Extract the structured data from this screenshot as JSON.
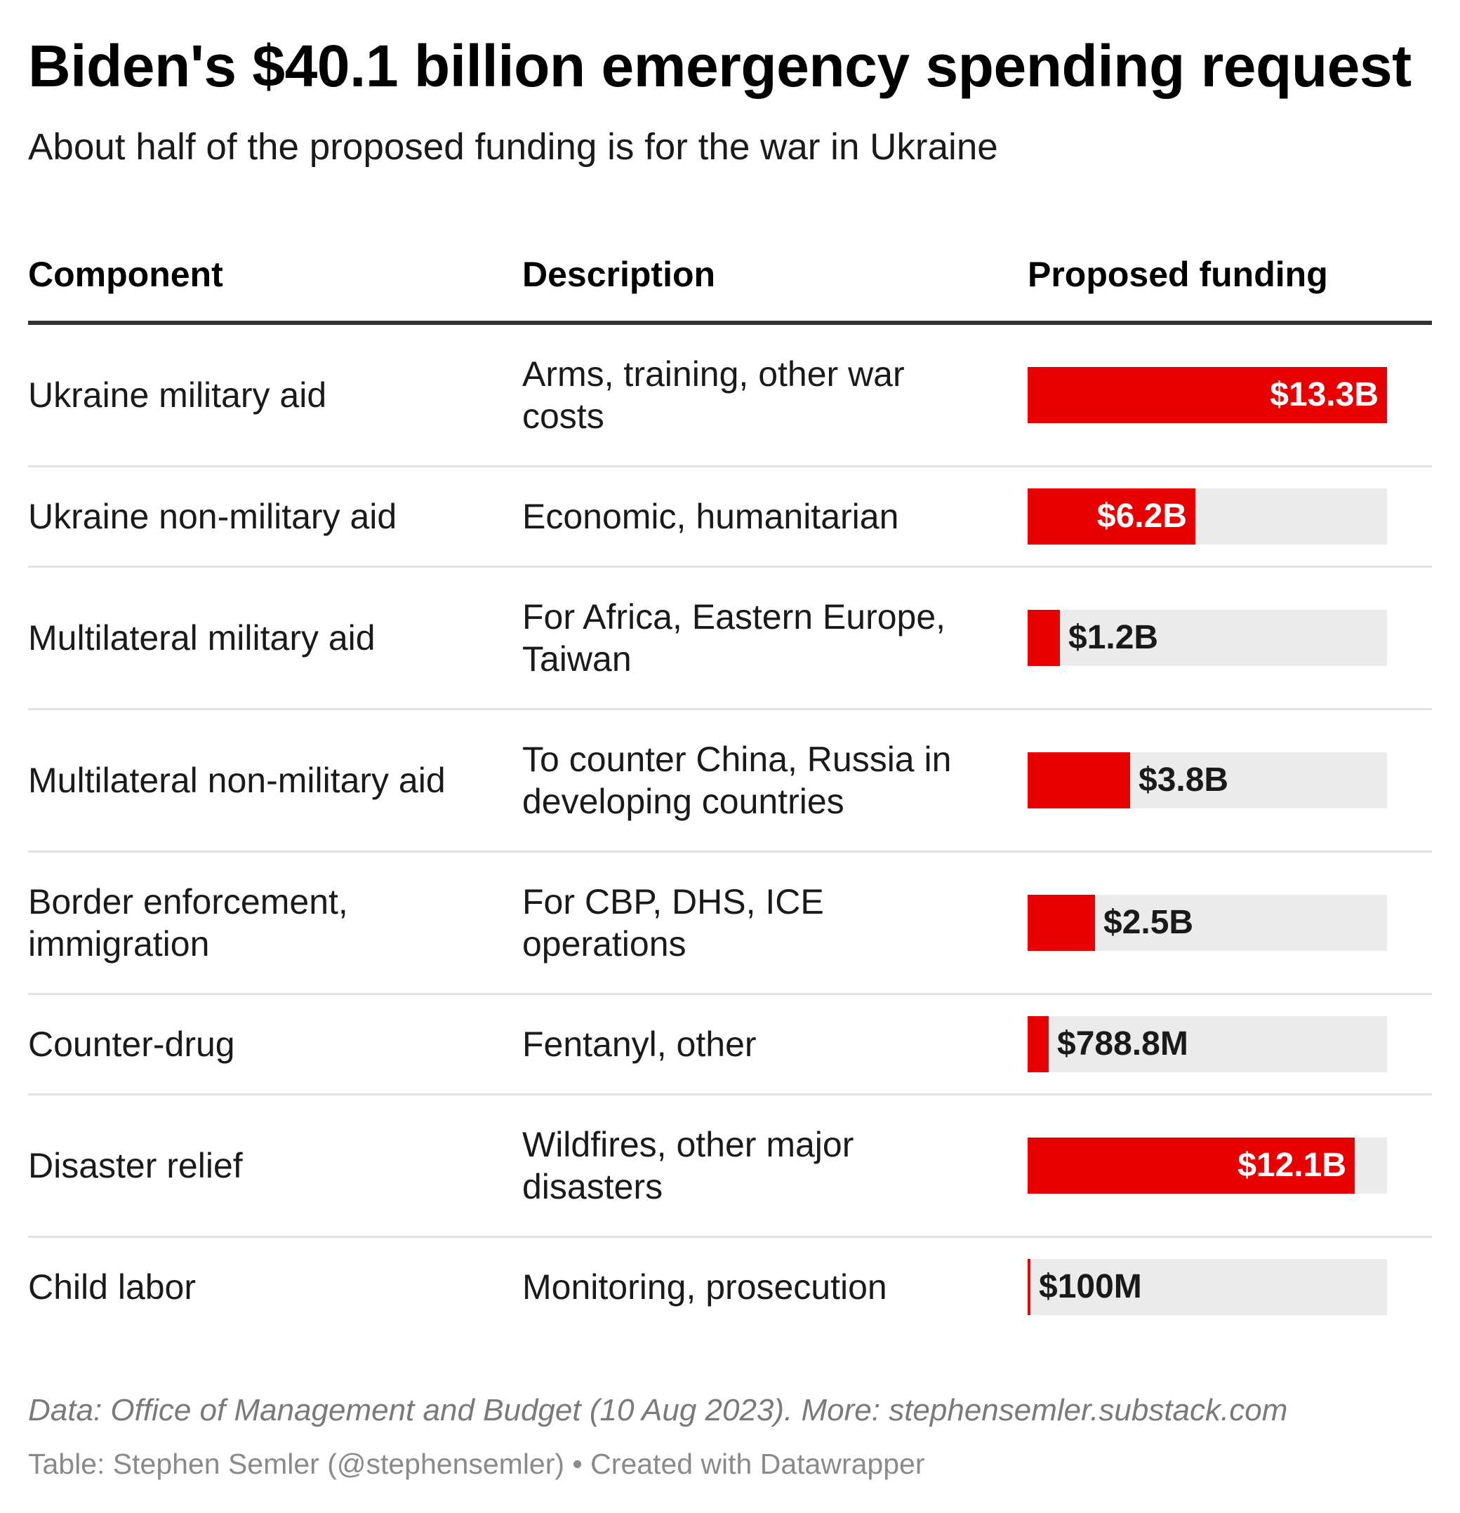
{
  "title": "Biden's $40.1 billion emergency spending request",
  "subtitle": "About half of the proposed funding is for the war in Ukraine",
  "headers": {
    "component": "Component",
    "description": "Description",
    "funding": "Proposed funding"
  },
  "colors": {
    "bar": "#e80000",
    "track": "#ebebeb"
  },
  "chart_data": {
    "type": "table",
    "title": "Biden's $40.1 billion emergency spending request",
    "subtitle": "About half of the proposed funding is for the war in Ukraine",
    "columns": [
      "Component",
      "Description",
      "Proposed funding"
    ],
    "unit": "USD billions",
    "scale_max": 13.3,
    "rows": [
      {
        "component": "Ukraine military aid",
        "description": "Arms, training, other war costs",
        "value": 13.3,
        "label": "$13.3B"
      },
      {
        "component": "Ukraine non-military aid",
        "description": "Economic, humanitarian",
        "value": 6.2,
        "label": "$6.2B"
      },
      {
        "component": "Multilateral military aid",
        "description": "For Africa, Eastern Europe, Taiwan",
        "value": 1.2,
        "label": "$1.2B"
      },
      {
        "component": "Multilateral non-military aid",
        "description": "To counter China, Russia in developing countries",
        "value": 3.8,
        "label": "$3.8B"
      },
      {
        "component": "Border enforcement, immigration",
        "description": "For CBP, DHS, ICE operations",
        "value": 2.5,
        "label": "$2.5B"
      },
      {
        "component": "Counter-drug",
        "description": "Fentanyl, other",
        "value": 0.7888,
        "label": "$788.8M"
      },
      {
        "component": "Disaster relief",
        "description": "Wildfires, other major disasters",
        "value": 12.1,
        "label": "$12.1B"
      },
      {
        "component": "Child labor",
        "description": "Monitoring, prosecution",
        "value": 0.1,
        "label": "$100M"
      }
    ]
  },
  "notes": "Data: Office of Management and Budget (10 Aug 2023). More: stephensemler.substack.com",
  "footer": "Table: Stephen Semler (@stephensemler) • Created with Datawrapper"
}
